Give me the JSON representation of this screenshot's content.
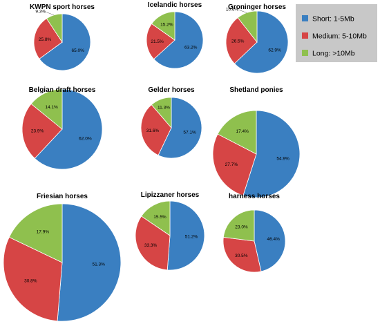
{
  "chart_data": {
    "type": "pie",
    "legend": {
      "position": "top-right",
      "entries": [
        {
          "label": "Short: 1-5Mb",
          "color": "#3a7fc1"
        },
        {
          "label": "Medium: 5-10Mb",
          "color": "#d64545"
        },
        {
          "label": "Long: >10Mb",
          "color": "#8fc04e"
        }
      ]
    },
    "charts": [
      {
        "title": "KWPN sport horses",
        "values": [
          65.0,
          25.8,
          9.3
        ],
        "labels": [
          "65.0%",
          "25.8%",
          "9.3%"
        ]
      },
      {
        "title": "Icelandic horses",
        "values": [
          63.2,
          21.5,
          15.2
        ],
        "labels": [
          "63.2%",
          "21.5%",
          "15.2%"
        ]
      },
      {
        "title": "Groninger horses",
        "values": [
          62.9,
          26.5,
          10.6
        ],
        "labels": [
          "62.9%",
          "26.5%",
          "10.6%"
        ]
      },
      {
        "title": "Belgian draft horses",
        "values": [
          62.0,
          23.9,
          14.1
        ],
        "labels": [
          "62.0%",
          "23.9%",
          "14.1%"
        ]
      },
      {
        "title": "Gelder horses",
        "values": [
          57.1,
          31.6,
          11.3
        ],
        "labels": [
          "57.1%",
          "31.6%",
          "11.3%"
        ]
      },
      {
        "title": "Shetland ponies",
        "values": [
          54.9,
          27.7,
          17.4
        ],
        "labels": [
          "54.9%",
          "27.7%",
          "17.4%"
        ]
      },
      {
        "title": "Friesian horses",
        "values": [
          51.3,
          30.8,
          17.9
        ],
        "labels": [
          "51.3%",
          "30.8%",
          "17.9%"
        ]
      },
      {
        "title": "Lipizzaner horses",
        "values": [
          51.2,
          33.3,
          15.5
        ],
        "labels": [
          "51.2%",
          "33.3%",
          "15.5%"
        ]
      },
      {
        "title": "harness horses",
        "values": [
          46.4,
          30.5,
          23.0
        ],
        "labels": [
          "46.4%",
          "30.5%",
          "23.0%"
        ]
      }
    ]
  }
}
